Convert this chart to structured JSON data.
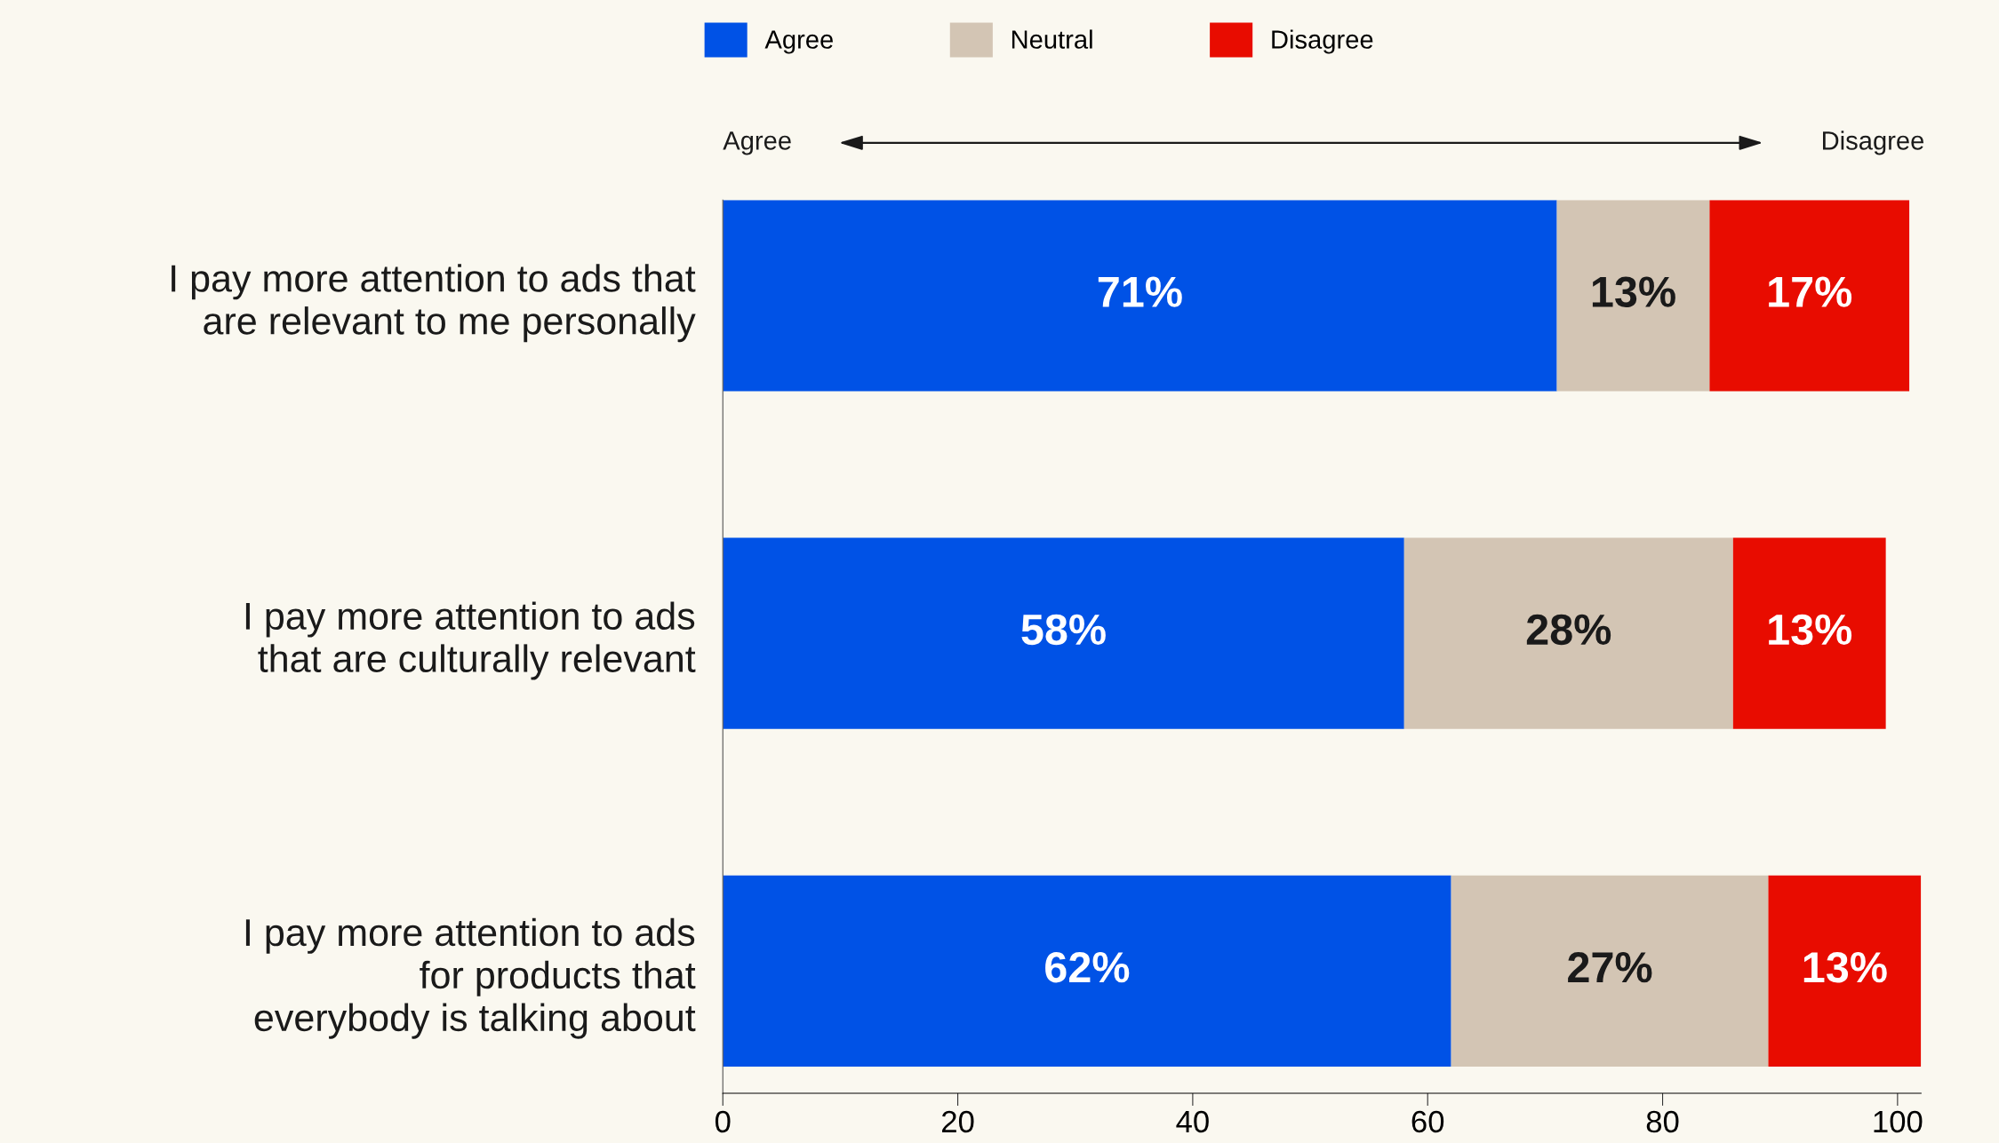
{
  "chart_data": {
    "type": "bar",
    "orientation": "horizontal",
    "stacked": true,
    "categories": [
      "I pay more attention to ads that\nare relevant to me personally",
      "I pay more attention to ads\nthat are culturally relevant",
      "I pay more attention to ads\nfor products that\neverybody is talking about"
    ],
    "series": [
      {
        "name": "Agree",
        "color": "#0052e6",
        "values": [
          71,
          58,
          62
        ],
        "value_labels": [
          "71%",
          "58%",
          "62%"
        ]
      },
      {
        "name": "Neutral",
        "color": "#d3c5b4",
        "values": [
          13,
          28,
          27
        ],
        "value_labels": [
          "13%",
          "28%",
          "27%"
        ]
      },
      {
        "name": "Disagree",
        "color": "#e80c00",
        "values": [
          17,
          13,
          13
        ],
        "value_labels": [
          "17%",
          "13%",
          "13%"
        ]
      }
    ],
    "xlim": [
      0,
      102
    ],
    "xticks": [
      0,
      20,
      40,
      60,
      80,
      100
    ],
    "legend": "top",
    "grid": false,
    "annotations": [
      "Agree",
      "Disagree"
    ]
  }
}
